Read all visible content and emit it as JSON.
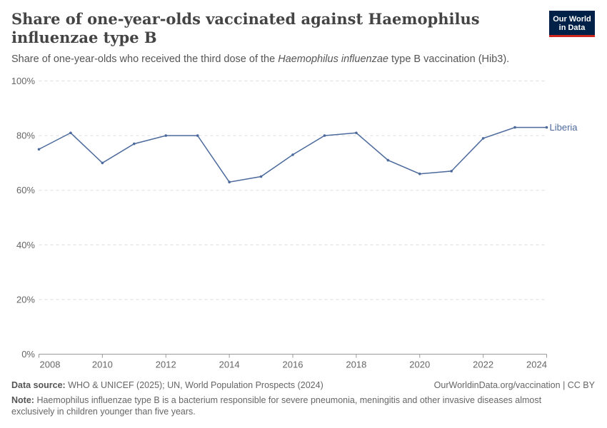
{
  "title": "Share of one-year-olds vaccinated against Haemophilus influenzae type B",
  "subtitle_pre": "Share of one-year-olds who received the third dose of the ",
  "subtitle_italic": "Haemophilus influenzae",
  "subtitle_post": " type B vaccination (Hib3).",
  "logo": {
    "line1": "Our World",
    "line2": "in Data"
  },
  "footer": {
    "source_label": "Data source:",
    "source": "WHO & UNICEF (2025); UN, World Population Prospects (2024)",
    "license": "OurWorldinData.org/vaccination | CC BY",
    "note_label": "Note:",
    "note": "Haemophilus influenzae type B is a bacterium responsible for severe pneumonia, meningitis and other invasive diseases almost exclusively in children younger than five years."
  },
  "chart_data": {
    "type": "line",
    "x": [
      2008,
      2009,
      2010,
      2011,
      2012,
      2013,
      2014,
      2015,
      2016,
      2017,
      2018,
      2019,
      2020,
      2021,
      2022,
      2023,
      2024
    ],
    "series": [
      {
        "name": "Liberia",
        "color": "#4c6a9c",
        "values": [
          75,
          81,
          70,
          77,
          80,
          80,
          63,
          65,
          73,
          80,
          81,
          71,
          66,
          67,
          79,
          83,
          83
        ]
      }
    ],
    "xticks": [
      "2008",
      "2010",
      "2012",
      "2014",
      "2016",
      "2018",
      "2020",
      "2022",
      "2024"
    ],
    "yticks": [
      "0%",
      "20%",
      "40%",
      "60%",
      "80%",
      "100%"
    ],
    "ylim": [
      0,
      100
    ],
    "xlim": [
      2008,
      2024
    ],
    "grid": "horizontal-dashed",
    "legend": "end-of-line-label"
  }
}
